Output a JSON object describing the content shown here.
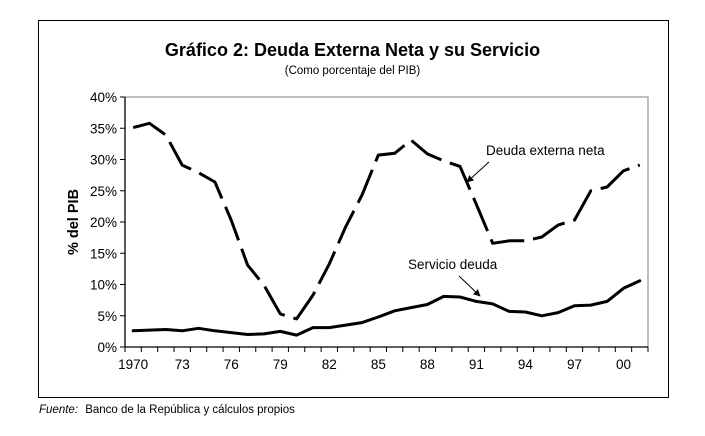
{
  "chart_data": {
    "type": "line",
    "title": "Gráfico 2: Deuda Externa Neta y su Servicio",
    "subtitle": "(Como porcentaje del PIB)",
    "xlabel": "",
    "ylabel": "% del PIB",
    "ylim": [
      0,
      40
    ],
    "y_ticks": [
      "0%",
      "5%",
      "10%",
      "15%",
      "20%",
      "25%",
      "30%",
      "35%",
      "40%"
    ],
    "y_tick_values": [
      0,
      5,
      10,
      15,
      20,
      25,
      30,
      35,
      40
    ],
    "x": [
      1970,
      1971,
      1972,
      1973,
      1974,
      1975,
      1976,
      1977,
      1978,
      1979,
      1980,
      1981,
      1982,
      1983,
      1984,
      1985,
      1986,
      1987,
      1988,
      1989,
      1990,
      1991,
      1992,
      1993,
      1994,
      1995,
      1996,
      1997,
      1998,
      1999,
      2000,
      2001
    ],
    "x_tick_labels": [
      {
        "index": 0,
        "label": "1970"
      },
      {
        "index": 3,
        "label": "73"
      },
      {
        "index": 6,
        "label": "76"
      },
      {
        "index": 9,
        "label": "79"
      },
      {
        "index": 12,
        "label": "82"
      },
      {
        "index": 15,
        "label": "85"
      },
      {
        "index": 18,
        "label": "88"
      },
      {
        "index": 21,
        "label": "91"
      },
      {
        "index": 24,
        "label": "94"
      },
      {
        "index": 27,
        "label": "97"
      },
      {
        "index": 30,
        "label": "00"
      }
    ],
    "grid": false,
    "legend": "none (inline annotations with arrows)",
    "series": [
      {
        "name": "Deuda externa neta",
        "style": "dashed",
        "values": [
          35.1,
          35.8,
          33.9,
          29.1,
          27.9,
          26.4,
          20.3,
          13.1,
          9.9,
          5.3,
          4.5,
          8.3,
          13.3,
          19.2,
          24.3,
          30.7,
          31.0,
          33.1,
          30.9,
          29.8,
          28.9,
          22.8,
          16.6,
          17.0,
          17.0,
          17.6,
          19.5,
          20.3,
          25.0,
          25.6,
          28.2,
          29.1
        ]
      },
      {
        "name": "Servicio deuda",
        "style": "solid",
        "values": [
          2.6,
          2.7,
          2.8,
          2.6,
          3.0,
          2.6,
          2.3,
          2.0,
          2.1,
          2.5,
          1.9,
          3.1,
          3.1,
          3.5,
          3.9,
          4.8,
          5.8,
          6.3,
          6.8,
          8.1,
          8.0,
          7.3,
          6.9,
          5.7,
          5.6,
          5.0,
          5.5,
          6.6,
          6.7,
          7.3,
          9.4,
          10.6
        ]
      }
    ],
    "annotations": [
      {
        "text": "Deuda externa neta",
        "points_to_series": "Deuda externa neta",
        "at_year": 1990
      },
      {
        "text": "Servicio deuda",
        "points_to_series": "Servicio deuda",
        "at_year": 1991
      }
    ],
    "colors": {
      "lines": "#000000",
      "axis": "#000000",
      "plot_border": "#808080"
    }
  },
  "source": {
    "label": "Fuente:",
    "text": "Banco de la República y cálculos propios"
  }
}
